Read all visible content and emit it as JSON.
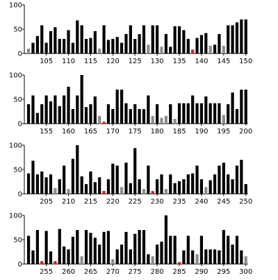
{
  "colors": {
    "normal": "#000000",
    "grey": "#8c8c8c",
    "red": "#e8141e",
    "axis": "#000000",
    "background": "#ffffff"
  },
  "chart_data": [
    {
      "type": "bar",
      "title": "",
      "xlabel": "",
      "ylabel": "",
      "x_range": [
        101,
        150
      ],
      "ylim": [
        0,
        100
      ],
      "y_ticks": [
        0,
        50,
        100
      ],
      "x_ticks": [
        105,
        110,
        115,
        120,
        125,
        130,
        135,
        140,
        145,
        150
      ],
      "values": [
        10,
        22,
        36,
        58,
        22,
        46,
        54,
        30,
        30,
        48,
        22,
        68,
        58,
        30,
        32,
        46,
        10,
        58,
        28,
        30,
        34,
        22,
        40,
        58,
        30,
        40,
        58,
        18,
        58,
        58,
        14,
        40,
        14,
        56,
        56,
        48,
        30,
        8,
        32,
        38,
        42,
        16,
        18,
        40,
        16,
        58,
        58,
        64,
        70,
        70
      ],
      "colors": [
        "grey",
        "normal",
        "normal",
        "normal",
        "normal",
        "normal",
        "normal",
        "normal",
        "normal",
        "normal",
        "normal",
        "normal",
        "normal",
        "normal",
        "normal",
        "normal",
        "grey",
        "normal",
        "normal",
        "normal",
        "normal",
        "normal",
        "normal",
        "normal",
        "normal",
        "normal",
        "normal",
        "grey",
        "normal",
        "normal",
        "grey",
        "normal",
        "normal",
        "normal",
        "normal",
        "normal",
        "normal",
        "red",
        "normal",
        "normal",
        "normal",
        "grey",
        "normal",
        "normal",
        "grey",
        "normal",
        "normal",
        "normal",
        "normal",
        "normal"
      ]
    },
    {
      "type": "bar",
      "title": "",
      "xlabel": "",
      "ylabel": "",
      "x_range": [
        151,
        200
      ],
      "ylim": [
        0,
        100
      ],
      "y_ticks": [
        0,
        50,
        100
      ],
      "x_ticks": [
        155,
        160,
        165,
        170,
        175,
        180,
        185,
        190,
        195,
        200
      ],
      "values": [
        40,
        58,
        22,
        40,
        58,
        46,
        58,
        36,
        58,
        76,
        30,
        58,
        100,
        34,
        40,
        56,
        16,
        4,
        40,
        30,
        70,
        70,
        42,
        30,
        40,
        30,
        30,
        58,
        16,
        40,
        12,
        16,
        40,
        10,
        42,
        42,
        42,
        58,
        42,
        42,
        56,
        42,
        42,
        42,
        18,
        40,
        64,
        30,
        70,
        70
      ],
      "colors": [
        "normal",
        "normal",
        "normal",
        "normal",
        "normal",
        "normal",
        "normal",
        "normal",
        "normal",
        "normal",
        "normal",
        "normal",
        "normal",
        "normal",
        "normal",
        "normal",
        "grey",
        "red",
        "normal",
        "normal",
        "normal",
        "normal",
        "normal",
        "normal",
        "normal",
        "normal",
        "normal",
        "normal",
        "grey",
        "normal",
        "grey",
        "grey",
        "normal",
        "grey",
        "normal",
        "normal",
        "normal",
        "normal",
        "normal",
        "normal",
        "normal",
        "normal",
        "normal",
        "normal",
        "grey",
        "normal",
        "normal",
        "normal",
        "normal",
        "normal"
      ]
    },
    {
      "type": "bar",
      "title": "",
      "xlabel": "",
      "ylabel": "",
      "x_range": [
        201,
        250
      ],
      "ylim": [
        0,
        100
      ],
      "y_ticks": [
        0,
        50,
        100
      ],
      "x_ticks": [
        205,
        210,
        215,
        220,
        225,
        230,
        235,
        240,
        245,
        250
      ],
      "values": [
        42,
        68,
        40,
        46,
        34,
        40,
        12,
        30,
        58,
        10,
        72,
        100,
        36,
        20,
        46,
        24,
        34,
        6,
        30,
        62,
        58,
        14,
        64,
        22,
        94,
        30,
        10,
        58,
        6,
        30,
        40,
        10,
        40,
        22,
        26,
        30,
        40,
        42,
        58,
        30,
        14,
        28,
        40,
        58,
        64,
        40,
        30,
        58,
        70,
        20
      ],
      "colors": [
        "normal",
        "normal",
        "normal",
        "normal",
        "normal",
        "normal",
        "grey",
        "normal",
        "normal",
        "grey",
        "normal",
        "normal",
        "normal",
        "normal",
        "normal",
        "normal",
        "normal",
        "red",
        "normal",
        "normal",
        "normal",
        "grey",
        "normal",
        "normal",
        "normal",
        "normal",
        "grey",
        "normal",
        "red",
        "normal",
        "normal",
        "grey",
        "normal",
        "normal",
        "normal",
        "normal",
        "normal",
        "normal",
        "normal",
        "normal",
        "grey",
        "normal",
        "normal",
        "normal",
        "normal",
        "normal",
        "normal",
        "normal",
        "normal",
        "normal"
      ]
    },
    {
      "type": "bar",
      "title": "",
      "xlabel": "",
      "ylabel": "",
      "x_range": [
        251,
        300
      ],
      "ylim": [
        0,
        100
      ],
      "y_ticks": [
        0,
        50,
        100
      ],
      "x_ticks": [
        255,
        260,
        265,
        270,
        275,
        280,
        285,
        290,
        295,
        300
      ],
      "values": [
        58,
        28,
        70,
        6,
        68,
        26,
        6,
        72,
        36,
        30,
        56,
        70,
        16,
        70,
        64,
        54,
        40,
        66,
        68,
        10,
        30,
        40,
        66,
        30,
        62,
        70,
        70,
        20,
        16,
        40,
        46,
        100,
        58,
        58,
        4,
        28,
        58,
        28,
        20,
        58,
        30,
        30,
        30,
        28,
        70,
        58,
        40,
        58,
        28,
        16
      ],
      "colors": [
        "normal",
        "normal",
        "normal",
        "red",
        "normal",
        "normal",
        "red",
        "normal",
        "normal",
        "normal",
        "normal",
        "normal",
        "grey",
        "normal",
        "normal",
        "normal",
        "normal",
        "normal",
        "normal",
        "grey",
        "normal",
        "normal",
        "normal",
        "normal",
        "normal",
        "normal",
        "normal",
        "normal",
        "grey",
        "normal",
        "normal",
        "normal",
        "normal",
        "normal",
        "red",
        "normal",
        "normal",
        "normal",
        "grey",
        "normal",
        "normal",
        "normal",
        "normal",
        "normal",
        "normal",
        "normal",
        "normal",
        "normal",
        "normal",
        "grey"
      ]
    }
  ]
}
